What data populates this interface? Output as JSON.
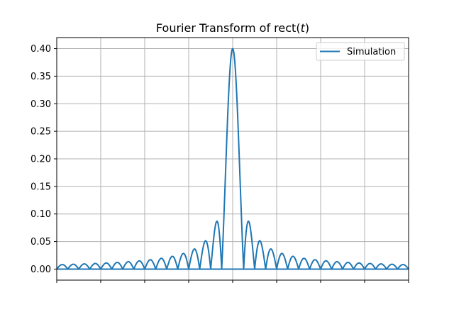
{
  "chart_data": {
    "type": "line",
    "title_main": "Fourier Transform of rect(",
    "title_var": "t",
    "title_close": ")",
    "xlabel": "",
    "ylabel": "",
    "xlim": [
      -4,
      4
    ],
    "xticks": [
      -4,
      -3,
      -2,
      -1,
      0,
      1,
      2,
      3,
      4
    ],
    "xtick_labels_visible": false,
    "ylim": [
      -0.02,
      0.42
    ],
    "yticks": [
      0.0,
      0.05,
      0.1,
      0.15,
      0.2,
      0.25,
      0.3,
      0.35,
      0.4
    ],
    "ytick_labels": [
      "0.00",
      "0.05",
      "0.10",
      "0.15",
      "0.20",
      "0.25",
      "0.30",
      "0.35",
      "0.40"
    ],
    "grid": true,
    "legend_location": "upper right",
    "series": [
      {
        "name": "Simulation",
        "color": "#1f77b4",
        "function": "0.4 * |sinc(4 * x)|",
        "x_range": [
          -4,
          4
        ],
        "peak_value": 0.4,
        "peak_x": 0,
        "zero_spacing": 0.25,
        "baseline_value": 0.0
      }
    ]
  }
}
